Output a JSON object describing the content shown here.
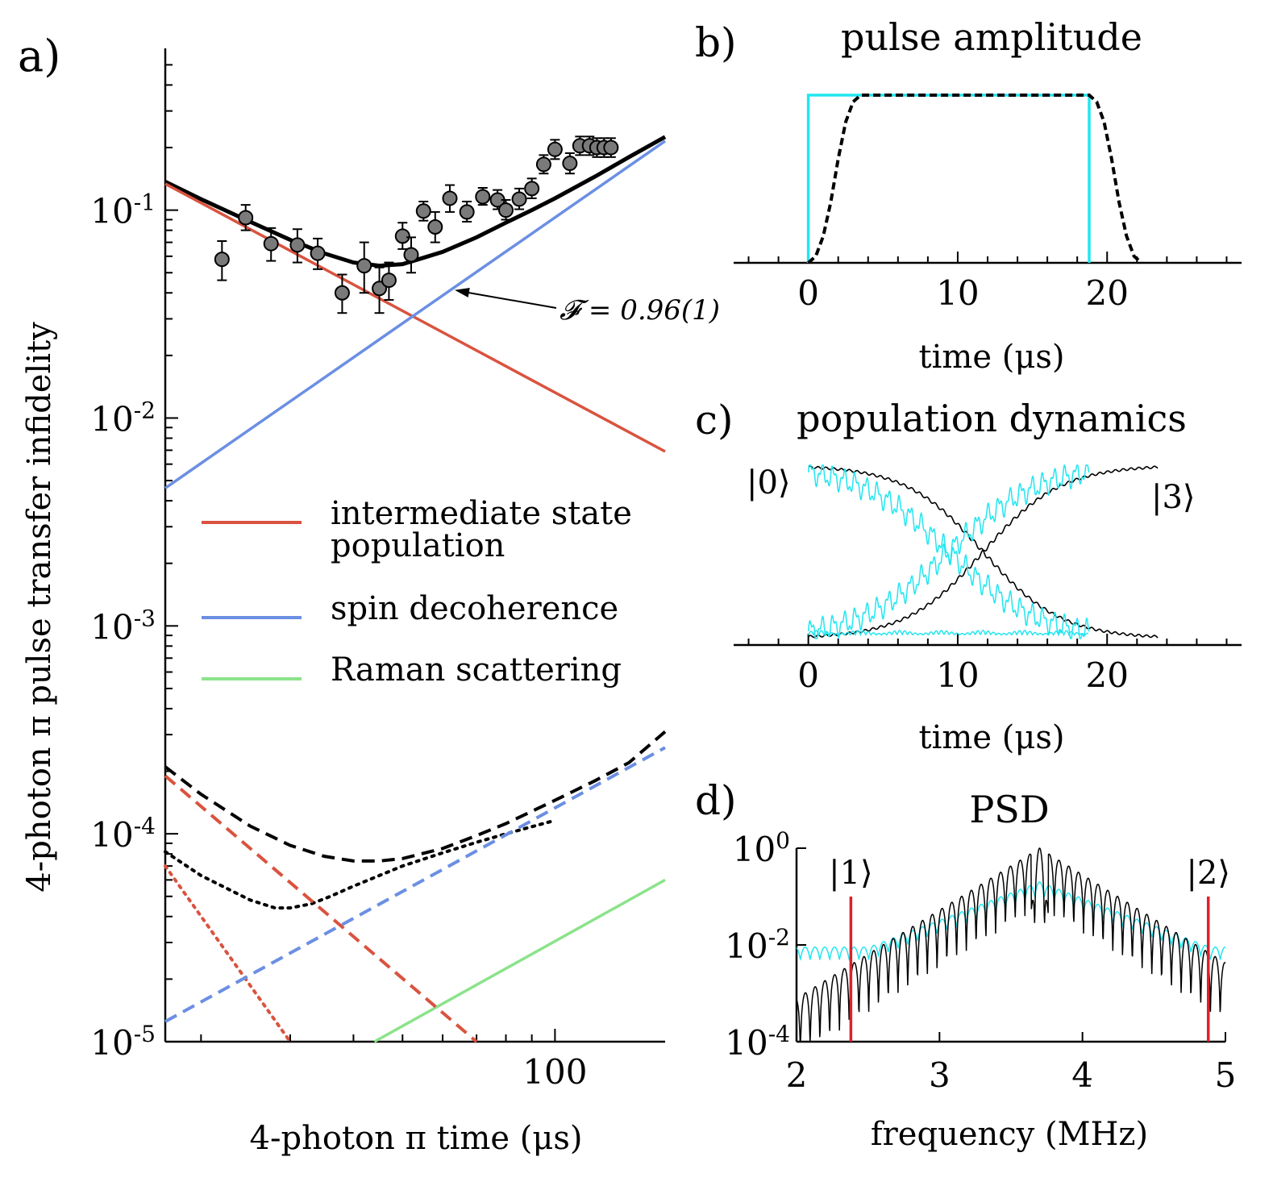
{
  "colors": {
    "red": "#d9533f",
    "blue": "#6b8fe3",
    "green": "#8be38b",
    "cyan": "#22e6f0",
    "black": "#000000",
    "marker_fill": "#7a7a7a",
    "state_green": "#4fae3a",
    "state_red": "#e0202a"
  },
  "chart_data": [
    {
      "panel": "a)",
      "type": "line",
      "title": "",
      "xlabel": "4-photon π time (μs)",
      "ylabel": "4-photon π pulse transfer infidelity",
      "xscale": "log",
      "yscale": "log",
      "xlim": [
        17,
        165
      ],
      "ylim": [
        1e-05,
        0.6
      ],
      "x_ticklabels": [
        {
          "value": 100,
          "text": "100"
        }
      ],
      "y_ticklabels": [
        {
          "value": 0.1,
          "base": "10",
          "exp": "-1"
        },
        {
          "value": 0.01,
          "base": "10",
          "exp": "-2"
        },
        {
          "value": 0.001,
          "base": "10",
          "exp": "-3"
        },
        {
          "value": 0.0001,
          "base": "10",
          "exp": "-4"
        },
        {
          "value": 1e-05,
          "base": "10",
          "exp": "-5"
        }
      ],
      "legend": {
        "placement": "middle",
        "entries": [
          {
            "label_lines": [
              "intermediate state",
              "population"
            ],
            "color": "red"
          },
          {
            "label_lines": [
              "spin decoherence"
            ],
            "color": "blue"
          },
          {
            "label_lines": [
              "Raman scattering"
            ],
            "color": "green"
          }
        ]
      },
      "annotation": {
        "text": "𝓕 = 0.96(1)",
        "x": 62,
        "y": 0.042
      },
      "series": [
        {
          "style": "solid",
          "color": "black",
          "x": [
            17,
            20,
            25,
            30,
            35,
            40,
            45,
            50,
            55,
            60,
            70,
            80,
            90,
            100,
            120,
            140,
            165
          ],
          "y": [
            0.137,
            0.113,
            0.088,
            0.072,
            0.062,
            0.056,
            0.054,
            0.055,
            0.059,
            0.063,
            0.074,
            0.087,
            0.1,
            0.114,
            0.145,
            0.18,
            0.225
          ]
        },
        {
          "style": "solid",
          "color": "red",
          "x": [
            17,
            165
          ],
          "y": [
            0.134,
            0.0069
          ]
        },
        {
          "style": "solid",
          "color": "blue",
          "x": [
            17,
            165
          ],
          "y": [
            0.0046,
            0.215
          ]
        },
        {
          "style": "solid",
          "color": "green",
          "x": [
            44,
            165
          ],
          "y": [
            1e-05,
            6e-05
          ]
        },
        {
          "style": "dashed",
          "color": "black",
          "x": [
            17,
            20,
            25,
            30,
            35,
            40,
            45,
            50,
            60,
            70,
            80,
            100,
            120,
            140,
            165
          ],
          "y": [
            0.00021,
            0.000155,
            0.000109,
            8.8e-05,
            7.8e-05,
            7.4e-05,
            7.4e-05,
            7.6e-05,
            8.5e-05,
            9.8e-05,
            0.000112,
            0.000145,
            0.00018,
            0.00022,
            0.00031
          ]
        },
        {
          "style": "dotted",
          "color": "black",
          "x": [
            17,
            20,
            25,
            28,
            30,
            33,
            36,
            40,
            45,
            50,
            60,
            70,
            80,
            100
          ],
          "y": [
            8.2e-05,
            6.3e-05,
            4.8e-05,
            4.4e-05,
            4.4e-05,
            4.6e-05,
            5e-05,
            5.6e-05,
            6.3e-05,
            7e-05,
            8.1e-05,
            9.1e-05,
            0.0001,
            0.000116
          ]
        },
        {
          "style": "dashed",
          "color": "red",
          "x": [
            17,
            70
          ],
          "y": [
            0.00019,
            1e-05
          ]
        },
        {
          "style": "dotted",
          "color": "red",
          "x": [
            17,
            30
          ],
          "y": [
            7e-05,
            1e-05
          ]
        },
        {
          "style": "dashed",
          "color": "blue",
          "x": [
            17,
            165
          ],
          "y": [
            1.25e-05,
            0.00026
          ]
        }
      ],
      "data_points": {
        "x": [
          22,
          24.5,
          27.5,
          31,
          34,
          38,
          42,
          45,
          47,
          50,
          52,
          55,
          58,
          62,
          67,
          72,
          77,
          80,
          85,
          90,
          95,
          100,
          107,
          112,
          117,
          121,
          125,
          129
        ],
        "y": [
          0.058,
          0.092,
          0.069,
          0.068,
          0.062,
          0.04,
          0.054,
          0.042,
          0.046,
          0.075,
          0.061,
          0.099,
          0.083,
          0.114,
          0.098,
          0.116,
          0.112,
          0.1,
          0.113,
          0.127,
          0.166,
          0.196,
          0.168,
          0.204,
          0.204,
          0.2,
          0.2,
          0.2
        ],
        "yerr_lo": [
          0.012,
          0.012,
          0.012,
          0.012,
          0.01,
          0.008,
          0.014,
          0.01,
          0.009,
          0.01,
          0.011,
          0.01,
          0.013,
          0.016,
          0.01,
          0.01,
          0.011,
          0.01,
          0.012,
          0.013,
          0.016,
          0.02,
          0.018,
          0.02,
          0.02,
          0.02,
          0.02,
          0.02
        ],
        "yerr_hi": [
          0.013,
          0.014,
          0.013,
          0.013,
          0.011,
          0.009,
          0.016,
          0.011,
          0.01,
          0.012,
          0.013,
          0.011,
          0.015,
          0.018,
          0.012,
          0.012,
          0.013,
          0.012,
          0.014,
          0.015,
          0.018,
          0.022,
          0.02,
          0.022,
          0.022,
          0.022,
          0.022,
          0.022
        ]
      }
    },
    {
      "panel": "b)",
      "type": "line",
      "title": "pulse amplitude",
      "xlabel": "time (μs)",
      "xlim": [
        -5,
        29
      ],
      "ylim": [
        0,
        1.1
      ],
      "x_ticklabels": [
        0,
        10,
        20
      ],
      "series": [
        {
          "style": "solid",
          "color": "cyan",
          "x": [
            0,
            0,
            18.8,
            18.8
          ],
          "y": [
            0,
            1,
            1,
            0
          ]
        },
        {
          "style": "dashed",
          "color": "black",
          "x": [
            0,
            0.5,
            1,
            1.5,
            2,
            2.5,
            3,
            3.5,
            18.8,
            19.3,
            19.8,
            20.3,
            20.8,
            21.3,
            21.8,
            22.3
          ],
          "y": [
            0,
            0.04,
            0.16,
            0.36,
            0.62,
            0.84,
            0.96,
            1,
            1,
            0.96,
            0.84,
            0.62,
            0.36,
            0.16,
            0.04,
            0
          ]
        }
      ]
    },
    {
      "panel": "c)",
      "type": "line",
      "title": "population dynamics",
      "xlabel": "time (μs)",
      "xlim": [
        -5,
        29
      ],
      "ylim": [
        -0.05,
        1.05
      ],
      "x_ticklabels": [
        0,
        10,
        20
      ],
      "state_labels": [
        {
          "text": "|0⟩",
          "side": "left"
        },
        {
          "text": "|3⟩",
          "side": "right"
        }
      ],
      "series": [
        {
          "name": "",
          "color": "black",
          "shape": "sigmoid-decay",
          "x_range": [
            0,
            23.4
          ],
          "center": 11.7
        },
        {
          "name": "",
          "color": "black",
          "shape": "sigmoid-rise",
          "x_range": [
            0,
            23.4
          ],
          "center": 11.7
        },
        {
          "name": "",
          "color": "cyan",
          "shape": "decay",
          "x_range": [
            0,
            18.8
          ]
        },
        {
          "name": "",
          "color": "cyan",
          "shape": "rise",
          "x_range": [
            0,
            18.8
          ]
        }
      ]
    },
    {
      "panel": "d)",
      "type": "line",
      "title": "PSD",
      "xlabel": "frequency (MHz)",
      "xlim": [
        2,
        5
      ],
      "yscale": "log",
      "ylim": [
        0.0001,
        1
      ],
      "x_ticklabels": [
        2,
        3,
        4,
        5
      ],
      "y_ticklabels": [
        {
          "value": 1,
          "base": "10",
          "exp": "0"
        },
        {
          "value": 0.01,
          "base": "10",
          "exp": "-2"
        },
        {
          "value": 0.0001,
          "base": "10",
          "exp": "-4"
        }
      ],
      "state_markers": [
        {
          "text": "|1⟩",
          "x": 2.38,
          "color": "state_red"
        },
        {
          "text": "|2⟩",
          "x": 4.88,
          "color": "state_red"
        }
      ],
      "peak_x": 3.7,
      "series": [
        {
          "color": "cyan",
          "floor": 0.009,
          "peak": 0.2
        },
        {
          "color": "black",
          "floor": 0.0004,
          "peak": 1
        }
      ]
    }
  ]
}
